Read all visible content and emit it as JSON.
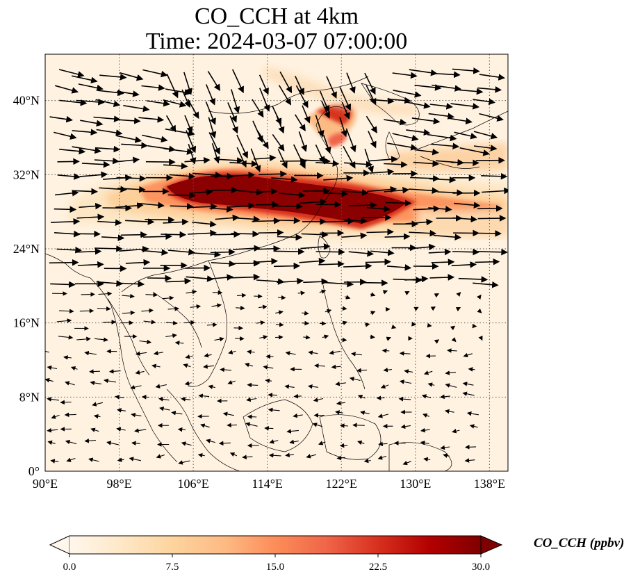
{
  "title": {
    "line1": "CO_CCH at 4km",
    "line2": "Time: 2024-03-07 07:00:00"
  },
  "map": {
    "type": "map",
    "projection": "PlateCarree",
    "lon_range": [
      90,
      140
    ],
    "lat_range": [
      0,
      45
    ],
    "x_ticks": [
      "90°E",
      "98°E",
      "106°E",
      "114°E",
      "122°E",
      "130°E",
      "138°E"
    ],
    "x_tick_values": [
      90,
      98,
      106,
      114,
      122,
      130,
      138
    ],
    "y_ticks": [
      "0°",
      "8°N",
      "16°N",
      "24°N",
      "32°N",
      "40°N"
    ],
    "y_tick_values": [
      0,
      8,
      16,
      24,
      32,
      40
    ],
    "gridlines": "dotted",
    "field": "CO_CCH",
    "high_concentration_band": "eastern China ~27–32°N, 103–128°E, extending east over the Pacific",
    "secondary_plume": "Bohai Sea / Beijing region ~37–40°N, 118–122°E",
    "overlay": "wind vectors (quiver), westerly flow north of 20°N, weak easterlies to the south"
  },
  "colorbar": {
    "label": "CO_CCH (ppbv)",
    "ticks": [
      "0.0",
      "7.5",
      "15.0",
      "22.5",
      "30.0"
    ],
    "tick_values": [
      0,
      7.5,
      15,
      22.5,
      30
    ],
    "range": [
      0,
      30
    ],
    "extend": "both",
    "colormap": "OrRd",
    "colors": [
      "#fff7ec",
      "#fee8c8",
      "#fdd49e",
      "#fdbb84",
      "#fc8d59",
      "#ef6548",
      "#d7301f",
      "#b30000",
      "#7f0000"
    ]
  }
}
